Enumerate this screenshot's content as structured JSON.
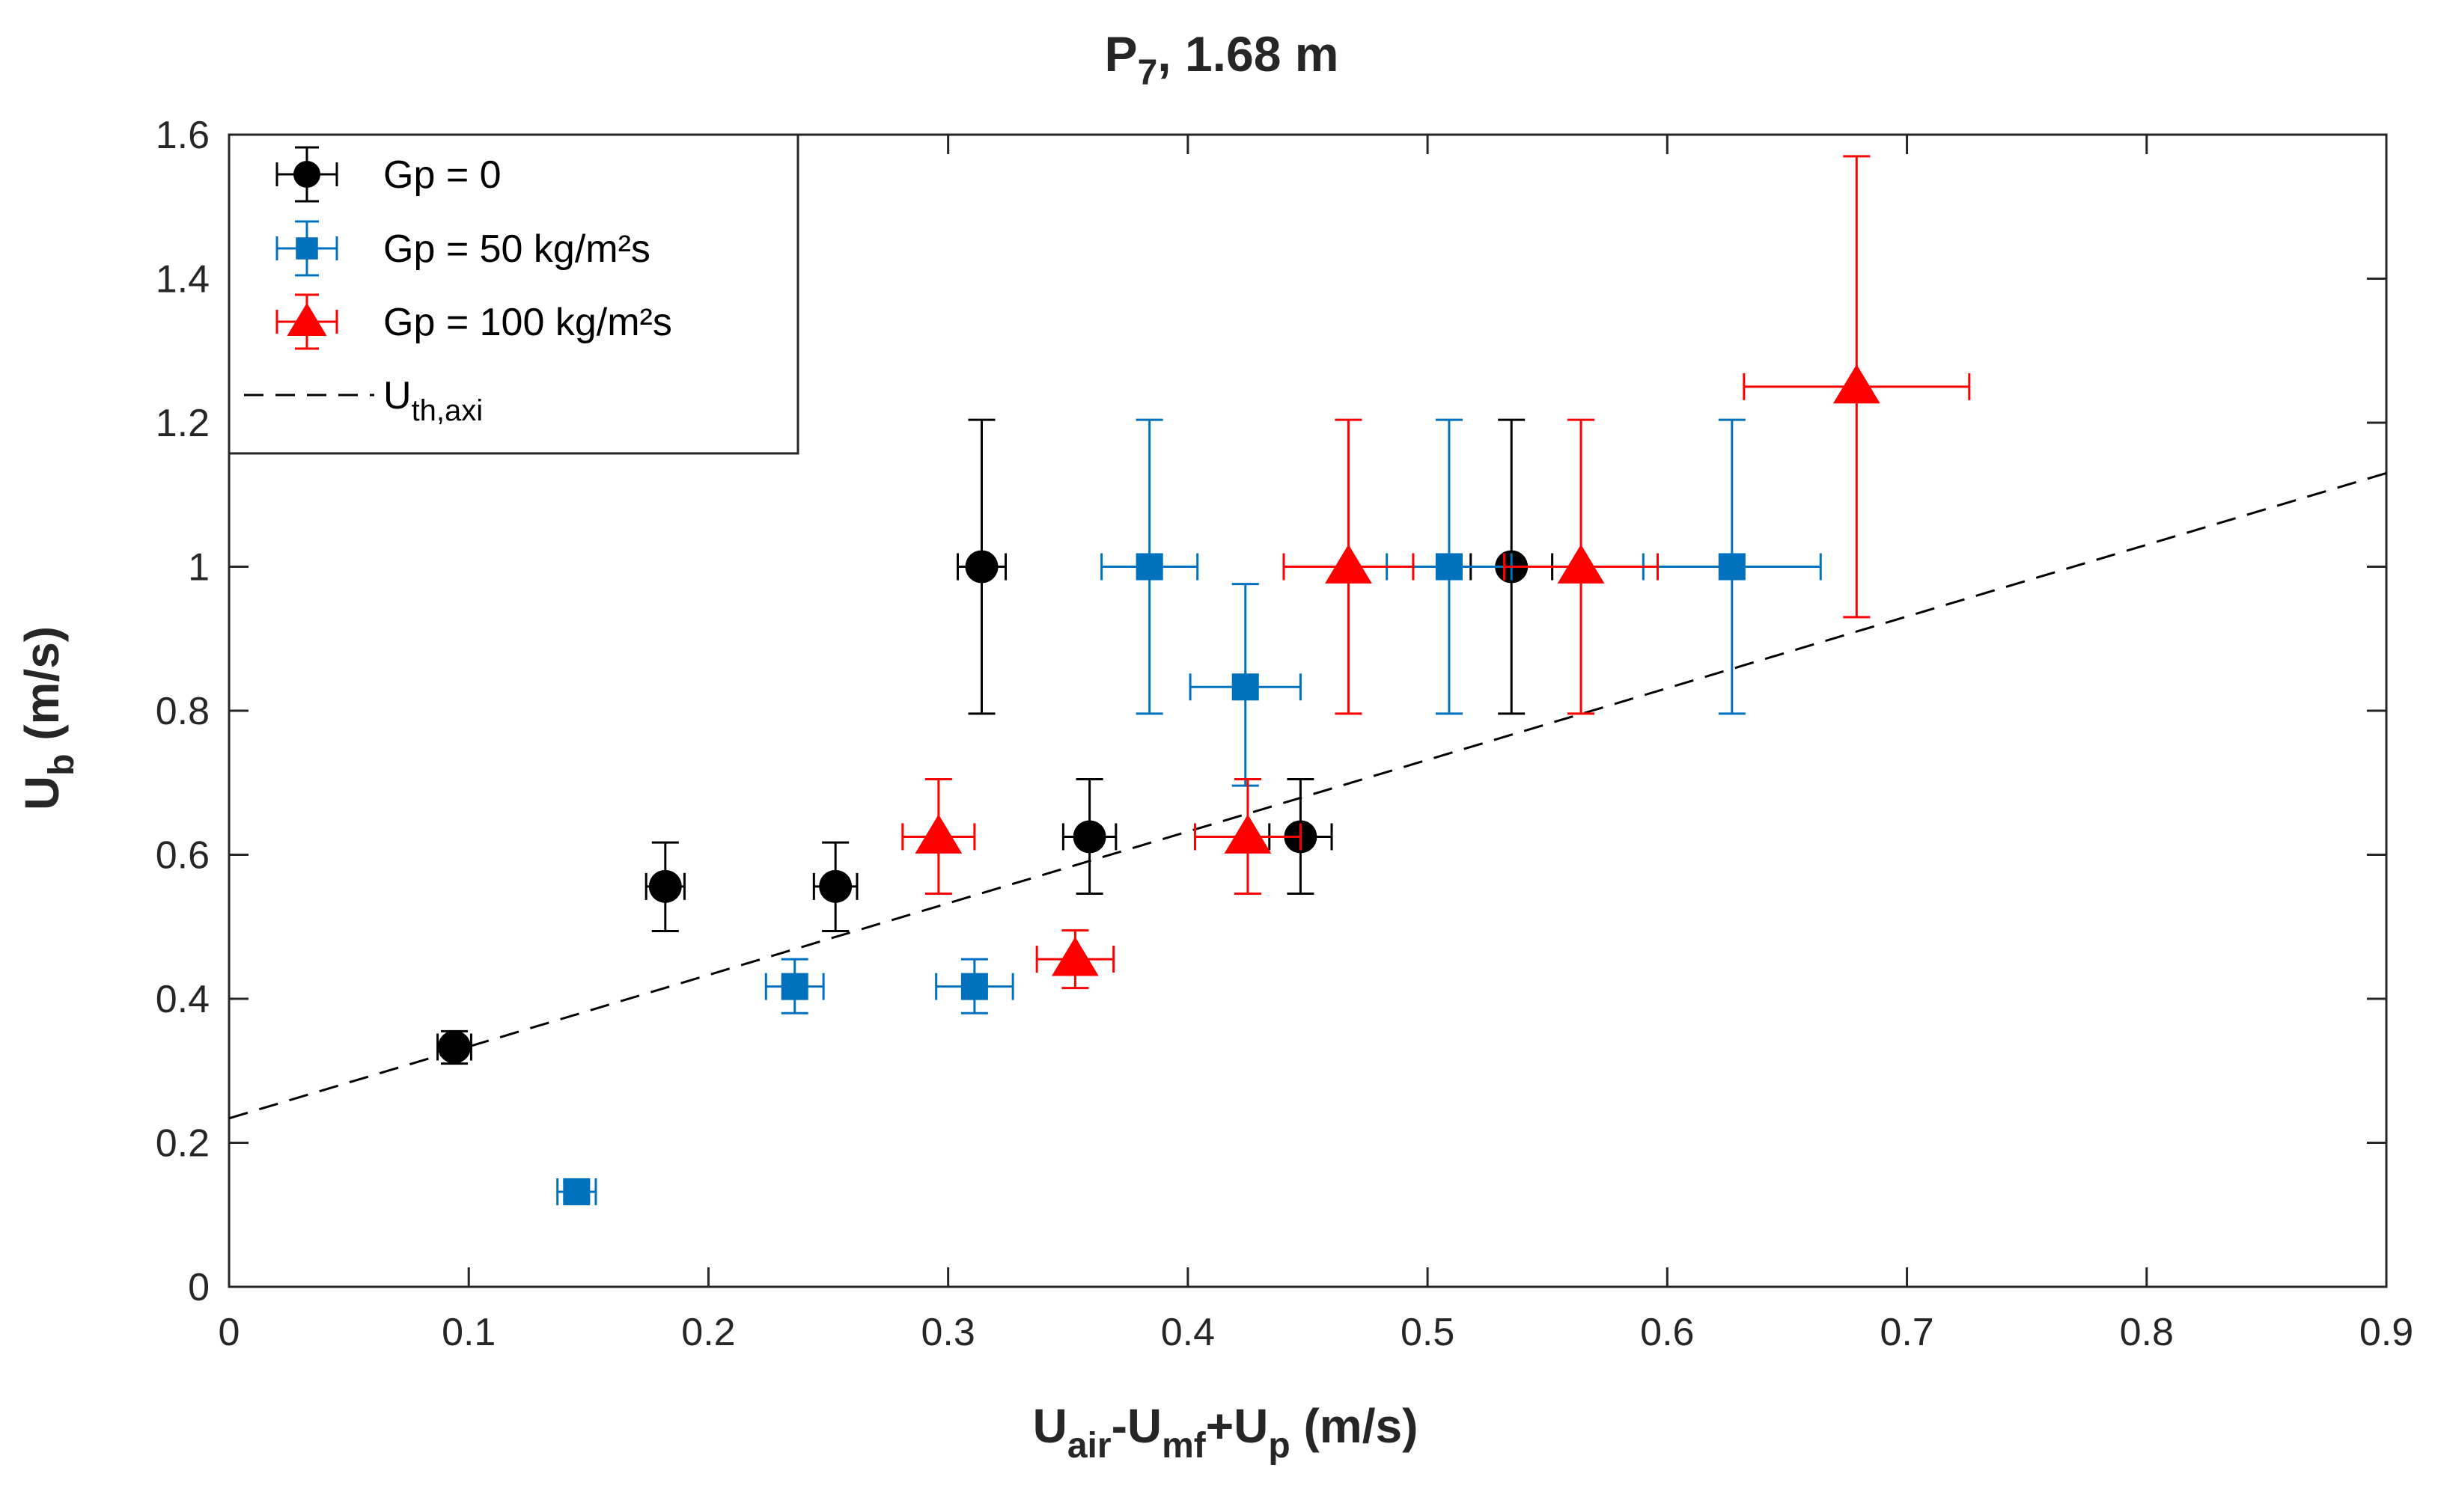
{
  "chart_data": {
    "type": "scatter",
    "title": {
      "main": "P",
      "sub": "7",
      "rest": ", 1.68 m"
    },
    "xlabel": {
      "parts": [
        {
          "t": "U",
          "sub": false
        },
        {
          "t": "air",
          "sub": true
        },
        {
          "t": "-U",
          "sub": false
        },
        {
          "t": "mf",
          "sub": true
        },
        {
          "t": "+U",
          "sub": false
        },
        {
          "t": "p",
          "sub": true
        },
        {
          "t": " (m/s)",
          "sub": false
        }
      ]
    },
    "ylabel": {
      "parts": [
        {
          "t": "U",
          "sub": false
        },
        {
          "t": "b",
          "sub": true
        },
        {
          "t": " (m/s)",
          "sub": false
        }
      ]
    },
    "xlim": [
      0,
      0.9
    ],
    "ylim": [
      0,
      1.6
    ],
    "xticks": [
      0,
      0.1,
      0.2,
      0.3,
      0.4,
      0.5,
      0.6,
      0.7,
      0.8,
      0.9
    ],
    "xtick_labels": [
      "0",
      "0.1",
      "0.2",
      "0.3",
      "0.4",
      "0.5",
      "0.6",
      "0.7",
      "0.8",
      "0.9"
    ],
    "yticks": [
      0,
      0.2,
      0.4,
      0.6,
      0.8,
      1,
      1.2,
      1.4,
      1.6
    ],
    "ytick_labels": [
      "0",
      "0.2",
      "0.4",
      "0.6",
      "0.8",
      "1",
      "1.2",
      "1.4",
      "1.6"
    ],
    "grid": false,
    "legend_position": "top-left",
    "series": [
      {
        "name": "Gp = 0",
        "marker": "circle",
        "color": "#000000",
        "points": [
          {
            "x": 0.094,
            "y": 0.333,
            "xerr": 0.007,
            "ylo": 0.31,
            "yhi": 0.355
          },
          {
            "x": 0.182,
            "y": 0.556,
            "xerr": 0.008,
            "ylo": 0.494,
            "yhi": 0.617
          },
          {
            "x": 0.253,
            "y": 0.556,
            "xerr": 0.009,
            "ylo": 0.494,
            "yhi": 0.617
          },
          {
            "x": 0.314,
            "y": 1.0,
            "xerr": 0.01,
            "ylo": 0.796,
            "yhi": 1.204
          },
          {
            "x": 0.359,
            "y": 0.625,
            "xerr": 0.011,
            "ylo": 0.546,
            "yhi": 0.705
          },
          {
            "x": 0.447,
            "y": 0.625,
            "xerr": 0.013,
            "ylo": 0.546,
            "yhi": 0.705
          },
          {
            "x": 0.535,
            "y": 1.0,
            "xerr": 0.017,
            "ylo": 0.796,
            "yhi": 1.204
          }
        ]
      },
      {
        "name": "Gp = 50 kg/m²s",
        "marker": "square",
        "color": "#0072BD",
        "points": [
          {
            "x": 0.145,
            "y": 0.132,
            "xerr": 0.008,
            "ylo": 0.12,
            "yhi": 0.145
          },
          {
            "x": 0.236,
            "y": 0.417,
            "xerr": 0.012,
            "ylo": 0.38,
            "yhi": 0.455
          },
          {
            "x": 0.311,
            "y": 0.417,
            "xerr": 0.016,
            "ylo": 0.38,
            "yhi": 0.455
          },
          {
            "x": 0.384,
            "y": 1.0,
            "xerr": 0.02,
            "ylo": 0.796,
            "yhi": 1.204
          },
          {
            "x": 0.424,
            "y": 0.833,
            "xerr": 0.023,
            "ylo": 0.696,
            "yhi": 0.976
          },
          {
            "x": 0.509,
            "y": 1.0,
            "xerr": 0.026,
            "ylo": 0.796,
            "yhi": 1.204
          },
          {
            "x": 0.627,
            "y": 1.0,
            "xerr": 0.037,
            "ylo": 0.796,
            "yhi": 1.204
          }
        ]
      },
      {
        "name": "Gp = 100 kg/m²s",
        "marker": "triangle",
        "color": "#FF0000",
        "points": [
          {
            "x": 0.296,
            "y": 0.625,
            "xerr": 0.015,
            "ylo": 0.546,
            "yhi": 0.705
          },
          {
            "x": 0.353,
            "y": 0.455,
            "xerr": 0.016,
            "ylo": 0.415,
            "yhi": 0.495
          },
          {
            "x": 0.425,
            "y": 0.625,
            "xerr": 0.022,
            "ylo": 0.546,
            "yhi": 0.705
          },
          {
            "x": 0.467,
            "y": 1.0,
            "xerr": 0.027,
            "ylo": 0.796,
            "yhi": 1.204
          },
          {
            "x": 0.564,
            "y": 1.0,
            "xerr": 0.032,
            "ylo": 0.796,
            "yhi": 1.204
          },
          {
            "x": 0.679,
            "y": 1.25,
            "xerr": 0.047,
            "ylo": 0.93,
            "yhi": 1.57
          }
        ]
      }
    ],
    "reference_line": {
      "name_parts": [
        {
          "t": "U",
          "sub": false
        },
        {
          "t": "th,axi",
          "sub": true
        }
      ],
      "style": "dashed",
      "color": "#000000",
      "points": [
        {
          "x": 0,
          "y": 0.234
        },
        {
          "x": 0.9,
          "y": 1.13
        }
      ]
    }
  }
}
